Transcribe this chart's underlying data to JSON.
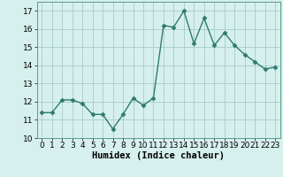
{
  "x": [
    0,
    1,
    2,
    3,
    4,
    5,
    6,
    7,
    8,
    9,
    10,
    11,
    12,
    13,
    14,
    15,
    16,
    17,
    18,
    19,
    20,
    21,
    22,
    23
  ],
  "y": [
    11.4,
    11.4,
    12.1,
    12.1,
    11.9,
    11.3,
    11.3,
    10.5,
    11.3,
    12.2,
    11.8,
    12.2,
    16.2,
    16.1,
    17.0,
    15.2,
    16.6,
    15.1,
    15.8,
    15.1,
    14.6,
    14.2,
    13.8,
    13.9
  ],
  "line_color": "#2e7b6e",
  "marker": "D",
  "marker_size": 2.5,
  "line_width": 1.0,
  "bg_color": "#d6f0ee",
  "grid_color": "#a8ccc8",
  "xlabel": "Humidex (Indice chaleur)",
  "xlim": [
    -0.5,
    23.5
  ],
  "ylim": [
    10,
    17.5
  ],
  "yticks": [
    10,
    11,
    12,
    13,
    14,
    15,
    16,
    17
  ],
  "xticks": [
    0,
    1,
    2,
    3,
    4,
    5,
    6,
    7,
    8,
    9,
    10,
    11,
    12,
    13,
    14,
    15,
    16,
    17,
    18,
    19,
    20,
    21,
    22,
    23
  ],
  "tick_labelsize": 6.5,
  "xlabel_fontsize": 7.5
}
